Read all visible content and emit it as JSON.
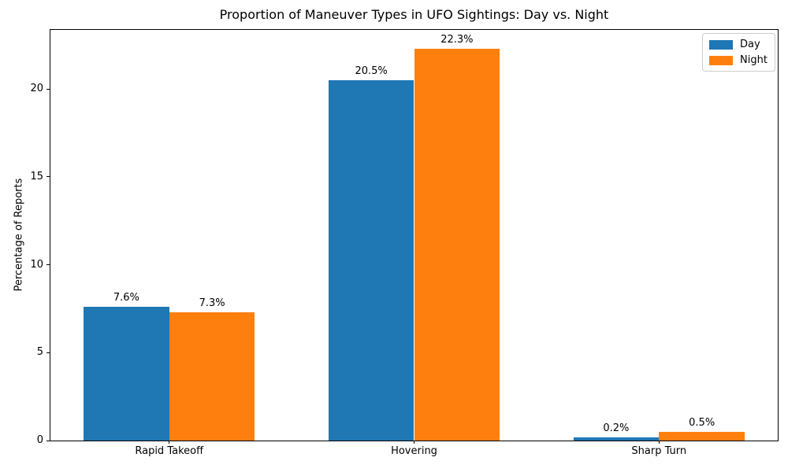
{
  "figure": {
    "background": "#ffffff",
    "frame_color": "#000000"
  },
  "chart_data": {
    "type": "bar",
    "title": "Proportion of Maneuver Types in UFO Sightings: Day vs. Night",
    "xlabel": "",
    "ylabel": "Percentage of Reports",
    "categories": [
      "Rapid Takeoff",
      "Hovering",
      "Sharp Turn"
    ],
    "series": [
      {
        "name": "Day",
        "color": "#1f77b4",
        "values": [
          7.6,
          20.5,
          0.2
        ],
        "bar_labels": [
          "7.6%",
          "20.5%",
          "0.2%"
        ]
      },
      {
        "name": "Night",
        "color": "#ff7f0e",
        "values": [
          7.3,
          22.3,
          0.5
        ],
        "bar_labels": [
          "7.3%",
          "22.3%",
          "0.5%"
        ]
      }
    ],
    "yticks": [
      0,
      5,
      10,
      15,
      20
    ],
    "ylim": [
      0,
      23.37
    ],
    "bar_width_units": 0.35,
    "xlim": [
      -0.485,
      2.485
    ],
    "grid": false,
    "legend": {
      "position": "upper-right",
      "entries": [
        "Day",
        "Night"
      ]
    }
  }
}
